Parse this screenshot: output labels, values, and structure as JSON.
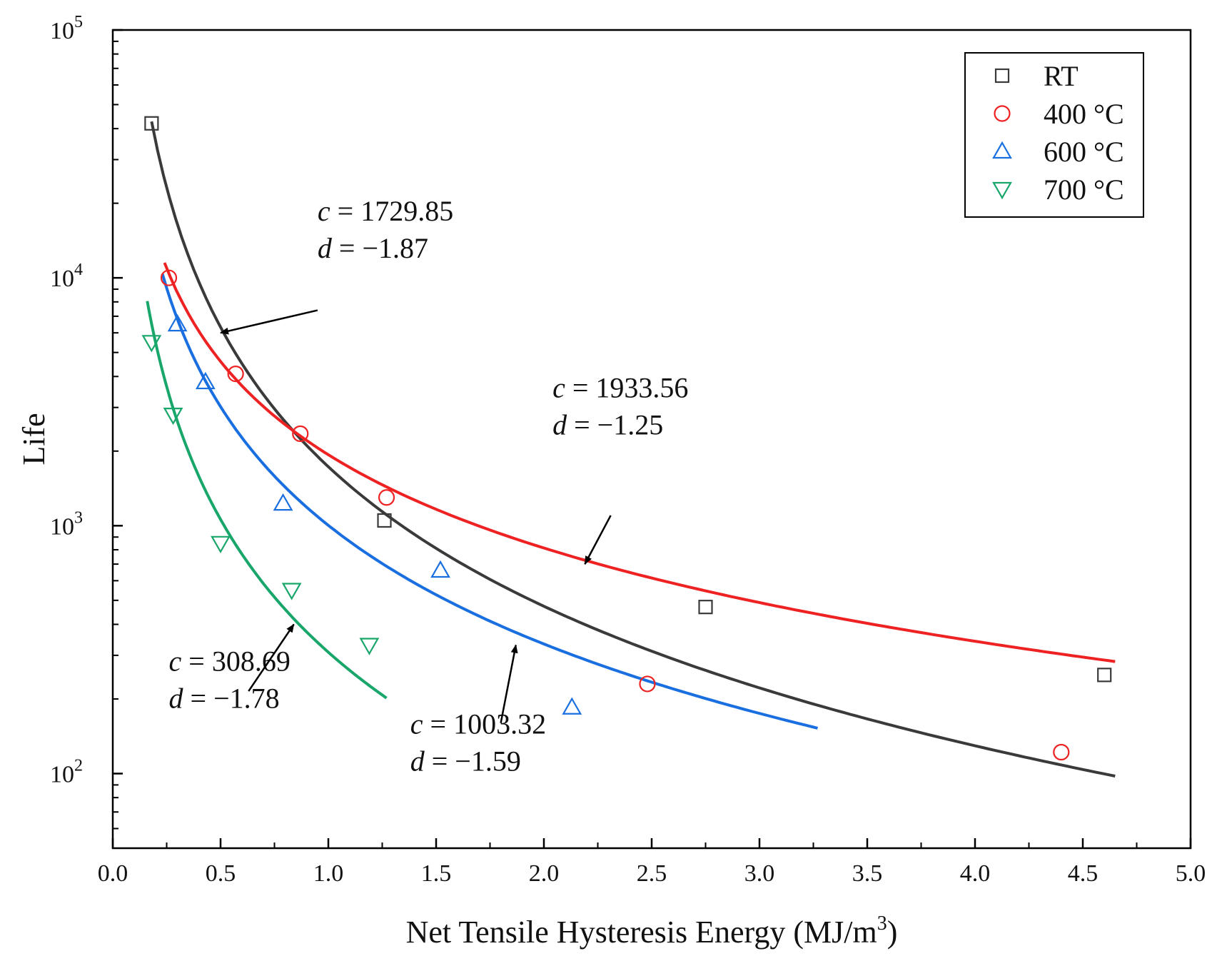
{
  "chart_data": {
    "type": "scatter",
    "xlabel": "Net Tensile Hysteresis Energy (MJ/m",
    "xlabel_sup": "3",
    "xlabel_end": ")",
    "ylabel": "Life",
    "xlim": [
      0.0,
      5.0
    ],
    "ylim": [
      50,
      100000
    ],
    "yscale": "log",
    "xticks": [
      "0.0",
      "0.5",
      "1.0",
      "1.5",
      "2.0",
      "2.5",
      "3.0",
      "3.5",
      "4.0",
      "4.5",
      "5.0"
    ],
    "yticks": [
      {
        "value": 100,
        "base": "10",
        "exp": "2"
      },
      {
        "value": 1000,
        "base": "10",
        "exp": "3"
      },
      {
        "value": 10000,
        "base": "10",
        "exp": "4"
      },
      {
        "value": 100000,
        "base": "10",
        "exp": "5"
      }
    ],
    "legend_position": "top-right",
    "series": [
      {
        "name": "RT",
        "marker": "square",
        "color": "#3a3a3a",
        "x": [
          0.18,
          1.26,
          2.75,
          4.6
        ],
        "y": [
          42000,
          1050,
          470,
          250
        ],
        "fit": {
          "c": 1729.85,
          "d": -1.87,
          "xmin": 0.18,
          "xmax": 4.65
        }
      },
      {
        "name": "400 °C",
        "marker": "circle",
        "color": "#ee2222",
        "x": [
          0.26,
          0.57,
          0.87,
          1.27,
          2.48,
          4.4
        ],
        "y": [
          10000,
          4100,
          2350,
          1300,
          230,
          122
        ],
        "fit": {
          "c": 1933.56,
          "d": -1.25,
          "xmin": 0.24,
          "xmax": 4.65
        }
      },
      {
        "name": "600 °C",
        "marker": "triangle-up",
        "color": "#1a6fe0",
        "x": [
          0.3,
          0.43,
          0.79,
          1.52,
          2.13
        ],
        "y": [
          6500,
          3800,
          1230,
          660,
          185
        ],
        "fit": {
          "c": 1003.32,
          "d": -1.59,
          "xmin": 0.23,
          "xmax": 3.27
        }
      },
      {
        "name": "700 °C",
        "marker": "triangle-down",
        "color": "#19a66b",
        "x": [
          0.18,
          0.28,
          0.5,
          0.83,
          1.19
        ],
        "y": [
          5500,
          2800,
          850,
          550,
          330
        ],
        "fit": {
          "c": 308.69,
          "d": -1.78,
          "xmin": 0.16,
          "xmax": 1.27
        }
      }
    ],
    "annotations": [
      {
        "series": "RT",
        "c_prefix": "c",
        "c_text": " = 1729.85",
        "d_prefix": "d",
        "d_text": " = −1.87",
        "text_pos": [
          0.95,
          17000
        ],
        "arrow_from": [
          0.95,
          7400
        ],
        "arrow_to": [
          0.5,
          6000
        ]
      },
      {
        "series": "400 °C",
        "c_prefix": "c",
        "c_text": " = 1933.56",
        "d_prefix": "d",
        "d_text": " = −1.25",
        "text_pos": [
          2.04,
          3300
        ],
        "arrow_from": [
          2.31,
          1100
        ],
        "arrow_to": [
          2.19,
          700
        ]
      },
      {
        "series": "600 °C",
        "c_prefix": "c",
        "c_text": " = 1003.32",
        "d_prefix": "d",
        "d_text": " = −1.59",
        "text_pos": [
          1.38,
          145
        ],
        "arrow_from": [
          1.8,
          160
        ],
        "arrow_to": [
          1.87,
          330
        ]
      },
      {
        "series": "700 °C",
        "c_prefix": "c",
        "c_text": " = 308.69",
        "d_prefix": "d",
        "d_text": " = −1.78",
        "text_pos": [
          0.26,
          260
        ],
        "arrow_from": [
          0.63,
          215
        ],
        "arrow_to": [
          0.84,
          400
        ]
      }
    ]
  }
}
